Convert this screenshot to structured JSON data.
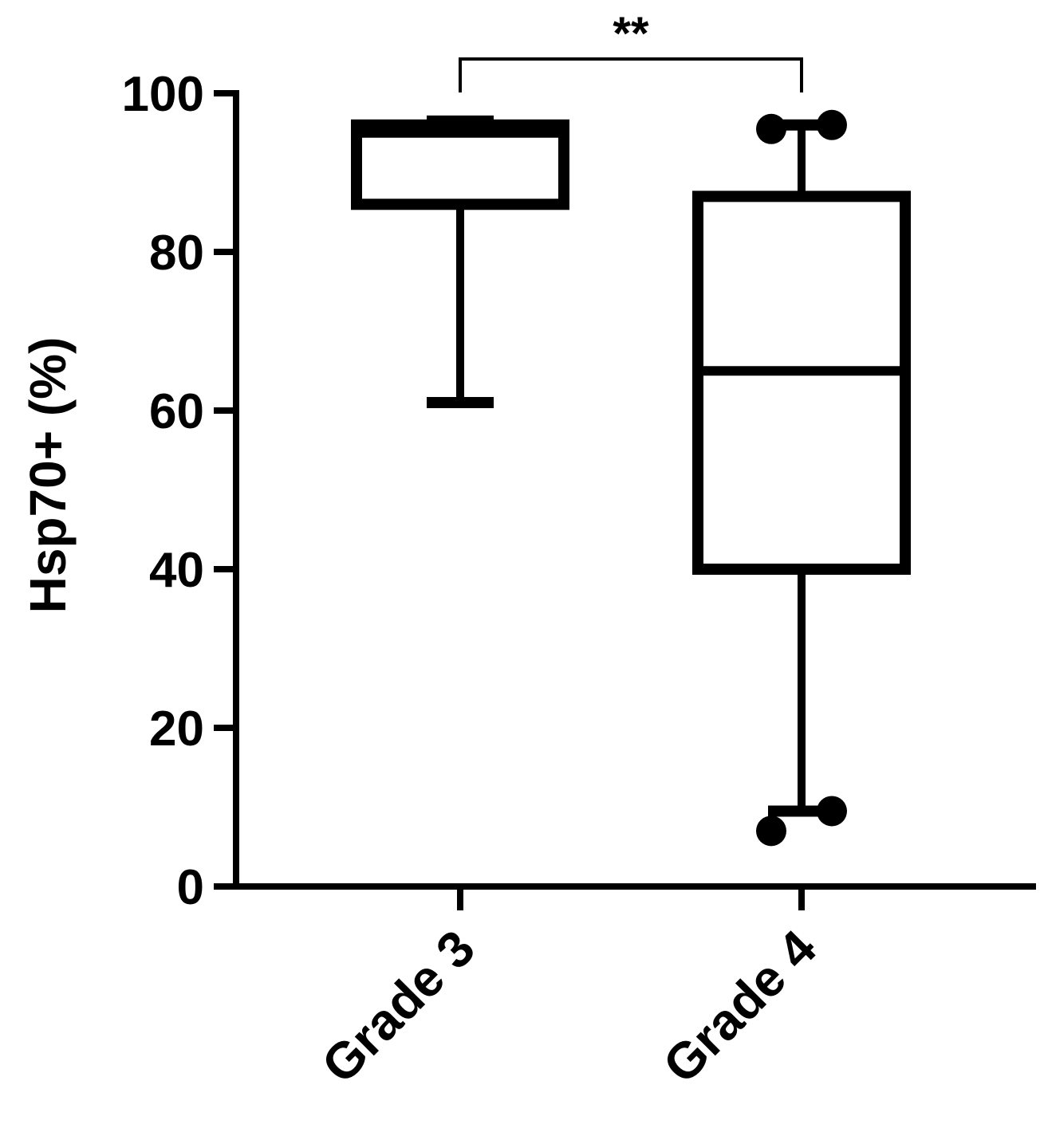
{
  "chart_data": {
    "type": "box",
    "title": "",
    "xlabel": "",
    "ylabel": "Hsp70+ (%)",
    "ylim": [
      0,
      100
    ],
    "yticks": [
      0,
      20,
      40,
      60,
      80,
      100
    ],
    "ytick_labels": [
      "0",
      "20",
      "40",
      "60",
      "80",
      "100"
    ],
    "categories": [
      "Grade 3",
      "Grade 4"
    ],
    "boxes": [
      {
        "category": "Grade 3",
        "whisker_low": 61,
        "q1": 86,
        "median": 95,
        "q3": 96,
        "whisker_high": 96.5,
        "outliers": []
      },
      {
        "category": "Grade 4",
        "whisker_low": 9.5,
        "q1": 40,
        "median": 65,
        "q3": 87,
        "whisker_high": 96,
        "outliers": [
          95.5,
          96,
          7,
          9.5
        ]
      }
    ],
    "significance": {
      "from": "Grade 3",
      "to": "Grade 4",
      "label": "**"
    },
    "grid": false,
    "colors": {
      "box_stroke": "#000000",
      "box_fill": "#ffffff"
    }
  }
}
